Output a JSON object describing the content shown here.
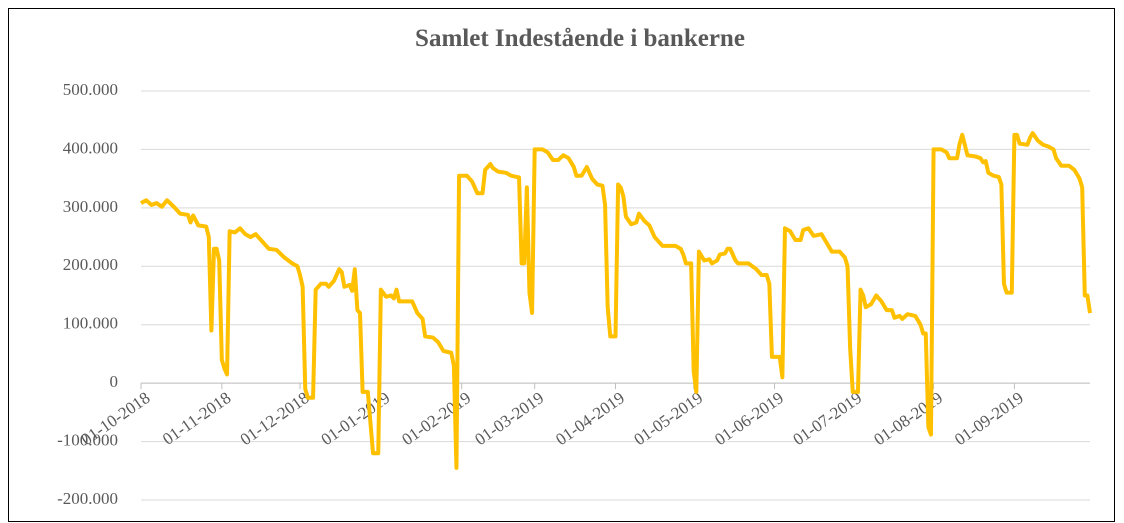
{
  "chart_data": {
    "type": "line",
    "title": "Samlet Indestående i bankerne",
    "xlim": [
      "2018-10-01",
      "2019-09-30"
    ],
    "xticks": [
      {
        "value": "2018-10-01",
        "label": "01-10-2018"
      },
      {
        "value": "2018-11-01",
        "label": "01-11-2018"
      },
      {
        "value": "2018-12-01",
        "label": "01-12-2018"
      },
      {
        "value": "2019-01-01",
        "label": "01-01-2019"
      },
      {
        "value": "2019-02-01",
        "label": "01-02-2019"
      },
      {
        "value": "2019-03-01",
        "label": "01-03-2019"
      },
      {
        "value": "2019-04-01",
        "label": "01-04-2019"
      },
      {
        "value": "2019-05-01",
        "label": "01-05-2019"
      },
      {
        "value": "2019-06-01",
        "label": "01-06-2019"
      },
      {
        "value": "2019-07-01",
        "label": "01-07-2019"
      },
      {
        "value": "2019-08-01",
        "label": "01-08-2019"
      },
      {
        "value": "2019-09-01",
        "label": "01-09-2019"
      }
    ],
    "ylim": [
      -200000,
      500000
    ],
    "yticks": [
      {
        "value": -200000,
        "label": "-200.000"
      },
      {
        "value": -100000,
        "label": "-100.000"
      },
      0,
      {
        "value": 100000,
        "label": "100.000"
      },
      {
        "value": 200000,
        "label": "200.000"
      },
      {
        "value": 300000,
        "label": "300.000"
      },
      {
        "value": 400000,
        "label": "400.000"
      },
      {
        "value": 500000,
        "label": "500.000"
      }
    ],
    "grid": true,
    "x": [
      "2018-10-01",
      "2018-10-03",
      "2018-10-05",
      "2018-10-07",
      "2018-10-09",
      "2018-10-11",
      "2018-10-14",
      "2018-10-16",
      "2018-10-19",
      "2018-10-20",
      "2018-10-21",
      "2018-10-23",
      "2018-10-26",
      "2018-10-27",
      "2018-10-28",
      "2018-10-29",
      "2018-10-30",
      "2018-10-31",
      "2018-11-01",
      "2018-11-02",
      "2018-11-03",
      "2018-11-04",
      "2018-11-06",
      "2018-11-08",
      "2018-11-10",
      "2018-11-12",
      "2018-11-14",
      "2018-11-17",
      "2018-11-19",
      "2018-11-22",
      "2018-11-25",
      "2018-11-28",
      "2018-11-30",
      "2018-12-01",
      "2018-12-02",
      "2018-12-03",
      "2018-12-04",
      "2018-12-06",
      "2018-12-07",
      "2018-12-09",
      "2018-12-11",
      "2018-12-12",
      "2018-12-14",
      "2018-12-16",
      "2018-12-17",
      "2018-12-18",
      "2018-12-20",
      "2018-12-21",
      "2018-12-22",
      "2018-12-23",
      "2018-12-24",
      "2018-12-25",
      "2018-12-27",
      "2018-12-29",
      "2018-12-31",
      "2019-01-01",
      "2019-01-03",
      "2019-01-05",
      "2019-01-06",
      "2019-01-07",
      "2019-01-08",
      "2019-01-13",
      "2019-01-15",
      "2019-01-17",
      "2019-01-18",
      "2019-01-21",
      "2019-01-23",
      "2019-01-25",
      "2019-01-28",
      "2019-01-29",
      "2019-01-30",
      "2019-01-31",
      "2019-02-03",
      "2019-02-05",
      "2019-02-07",
      "2019-02-09",
      "2019-02-10",
      "2019-02-12",
      "2019-02-13",
      "2019-02-15",
      "2019-02-18",
      "2019-02-20",
      "2019-02-23",
      "2019-02-24",
      "2019-02-25",
      "2019-02-26",
      "2019-02-27",
      "2019-02-28",
      "2019-03-01",
      "2019-03-04",
      "2019-03-06",
      "2019-03-08",
      "2019-03-10",
      "2019-03-12",
      "2019-03-14",
      "2019-03-16",
      "2019-03-17",
      "2019-03-19",
      "2019-03-21",
      "2019-03-23",
      "2019-03-25",
      "2019-03-27",
      "2019-03-28",
      "2019-03-29",
      "2019-03-30",
      "2019-04-01",
      "2019-04-02",
      "2019-04-03",
      "2019-04-04",
      "2019-04-05",
      "2019-04-07",
      "2019-04-09",
      "2019-04-10",
      "2019-04-12",
      "2019-04-14",
      "2019-04-16",
      "2019-04-19",
      "2019-04-24",
      "2019-04-26",
      "2019-04-27",
      "2019-04-28",
      "2019-04-30",
      "2019-05-01",
      "2019-05-02",
      "2019-05-03",
      "2019-05-05",
      "2019-05-07",
      "2019-05-08",
      "2019-05-10",
      "2019-05-11",
      "2019-05-13",
      "2019-05-14",
      "2019-05-15",
      "2019-05-17",
      "2019-05-18",
      "2019-05-22",
      "2019-05-25",
      "2019-05-27",
      "2019-05-29",
      "2019-05-30",
      "2019-05-31",
      "2019-06-03",
      "2019-06-04",
      "2019-06-05",
      "2019-06-07",
      "2019-06-09",
      "2019-06-11",
      "2019-06-12",
      "2019-06-14",
      "2019-06-16",
      "2019-06-19",
      "2019-06-21",
      "2019-06-23",
      "2019-06-26",
      "2019-06-28",
      "2019-06-29",
      "2019-06-30",
      "2019-07-01",
      "2019-07-03",
      "2019-07-04",
      "2019-07-05",
      "2019-07-06",
      "2019-07-08",
      "2019-07-10",
      "2019-07-12",
      "2019-07-14",
      "2019-07-16",
      "2019-07-17",
      "2019-07-19",
      "2019-07-20",
      "2019-07-22",
      "2019-07-25",
      "2019-07-27",
      "2019-07-28",
      "2019-07-29",
      "2019-07-30",
      "2019-07-31",
      "2019-08-01",
      "2019-08-04",
      "2019-08-06",
      "2019-08-07",
      "2019-08-10",
      "2019-08-11",
      "2019-08-12",
      "2019-08-14",
      "2019-08-17",
      "2019-08-19",
      "2019-08-20",
      "2019-08-21",
      "2019-08-22",
      "2019-08-24",
      "2019-08-26",
      "2019-08-27",
      "2019-08-28",
      "2019-08-29",
      "2019-08-31",
      "2019-09-01",
      "2019-09-02",
      "2019-09-03",
      "2019-09-06",
      "2019-09-07",
      "2019-09-08",
      "2019-09-10",
      "2019-09-12",
      "2019-09-14",
      "2019-09-16",
      "2019-09-17",
      "2019-09-19",
      "2019-09-22",
      "2019-09-24",
      "2019-09-26",
      "2019-09-27",
      "2019-09-28",
      "2019-09-29",
      "2019-09-30"
    ],
    "series": [
      {
        "color": "#ffc000",
        "values": [
          308000,
          313000,
          305000,
          308000,
          302000,
          313000,
          300000,
          290000,
          288000,
          275000,
          287000,
          270000,
          268000,
          250000,
          90000,
          230000,
          230000,
          210000,
          40000,
          25000,
          15000,
          260000,
          258000,
          265000,
          255000,
          250000,
          255000,
          240000,
          230000,
          228000,
          215000,
          205000,
          200000,
          185000,
          165000,
          -10000,
          -25000,
          -25000,
          160000,
          170000,
          170000,
          165000,
          175000,
          195000,
          190000,
          165000,
          168000,
          158000,
          195000,
          125000,
          120000,
          -15000,
          -15000,
          -120000,
          -120000,
          160000,
          148000,
          150000,
          145000,
          160000,
          140000,
          140000,
          120000,
          110000,
          80000,
          78000,
          70000,
          55000,
          52000,
          30000,
          -145000,
          355000,
          355000,
          345000,
          325000,
          325000,
          365000,
          375000,
          368000,
          362000,
          360000,
          355000,
          352000,
          205000,
          205000,
          335000,
          155000,
          120000,
          400000,
          400000,
          395000,
          382000,
          382000,
          390000,
          385000,
          370000,
          355000,
          355000,
          370000,
          350000,
          340000,
          338000,
          305000,
          130000,
          80000,
          80000,
          340000,
          335000,
          320000,
          285000,
          272000,
          275000,
          290000,
          278000,
          270000,
          250000,
          235000,
          235000,
          230000,
          220000,
          205000,
          205000,
          20000,
          -15000,
          225000,
          210000,
          212000,
          205000,
          210000,
          220000,
          222000,
          230000,
          230000,
          210000,
          205000,
          205000,
          195000,
          185000,
          185000,
          170000,
          45000,
          45000,
          10000,
          265000,
          260000,
          245000,
          245000,
          262000,
          265000,
          252000,
          255000,
          240000,
          225000,
          225000,
          215000,
          200000,
          60000,
          -15000,
          -15000,
          160000,
          150000,
          130000,
          135000,
          150000,
          140000,
          125000,
          125000,
          112000,
          115000,
          110000,
          118000,
          115000,
          100000,
          85000,
          85000,
          -75000,
          -88000,
          400000,
          400000,
          395000,
          385000,
          385000,
          410000,
          425000,
          390000,
          388000,
          385000,
          378000,
          380000,
          360000,
          355000,
          353000,
          340000,
          170000,
          155000,
          155000,
          425000,
          425000,
          410000,
          408000,
          420000,
          428000,
          415000,
          408000,
          405000,
          400000,
          385000,
          372000,
          372000,
          365000,
          350000,
          335000,
          150000,
          150000,
          120000
        ]
      }
    ]
  }
}
